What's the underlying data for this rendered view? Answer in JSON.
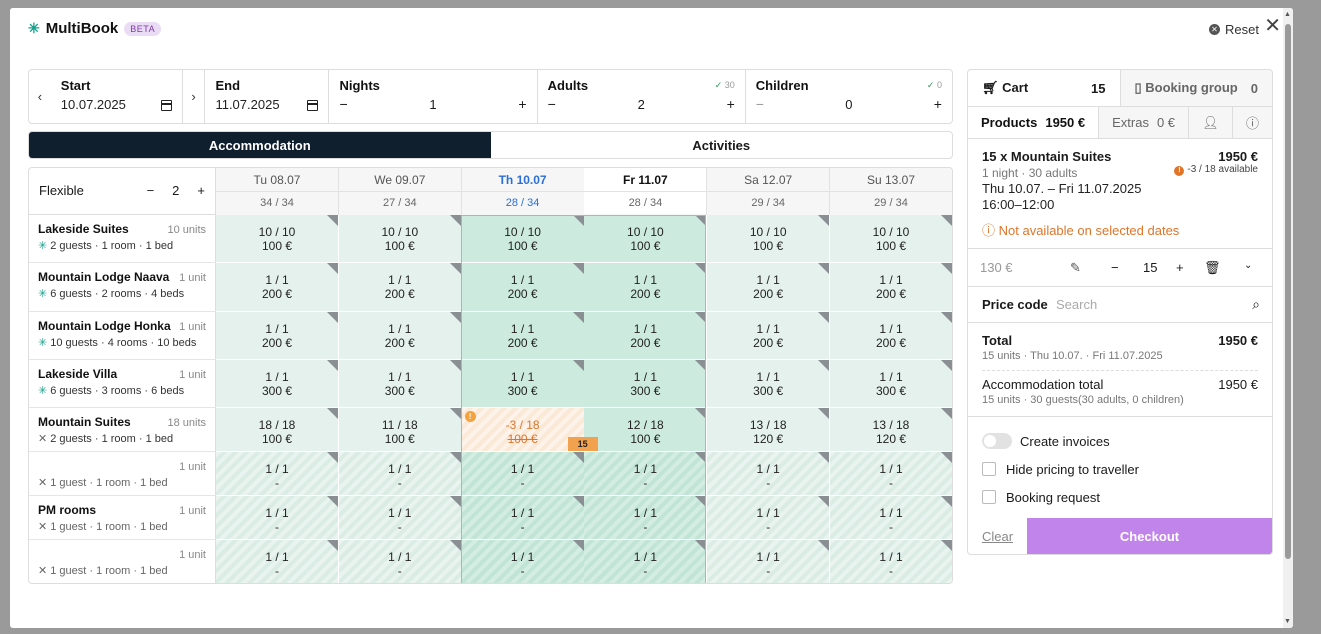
{
  "header": {
    "app_title": "MultiBook",
    "beta": "BETA",
    "reset": "Reset"
  },
  "controls": {
    "start": {
      "label": "Start",
      "value": "10.07.2025"
    },
    "end": {
      "label": "End",
      "value": "11.07.2025"
    },
    "nights": {
      "label": "Nights",
      "value": "1"
    },
    "adults": {
      "label": "Adults",
      "value": "2",
      "check": "30"
    },
    "children": {
      "label": "Children",
      "value": "0",
      "check": "0"
    }
  },
  "tabs": {
    "accommodation": "Accommodation",
    "activities": "Activities"
  },
  "grid": {
    "flexible_label": "Flexible",
    "flexible_value": "2",
    "days": [
      {
        "label": "Tu 08.07",
        "avail": "34 / 34"
      },
      {
        "label": "We 09.07",
        "avail": "27 / 34"
      },
      {
        "label": "Th 10.07",
        "avail": "28 / 34"
      },
      {
        "label": "Fr 11.07",
        "avail": "28 / 34"
      },
      {
        "label": "Sa 12.07",
        "avail": "29 / 34"
      },
      {
        "label": "Su 13.07",
        "avail": "29 / 34"
      }
    ],
    "rows": [
      {
        "name": "Lakeside Suites",
        "units": "10 units",
        "info": "2 guests · 1 room · 1 bed",
        "cells": [
          [
            "10 / 10",
            "100 €"
          ],
          [
            "10 / 10",
            "100 €"
          ],
          [
            "10 / 10",
            "100 €"
          ],
          [
            "10 / 10",
            "100 €"
          ],
          [
            "10 / 10",
            "100 €"
          ],
          [
            "10 / 10",
            "100 €"
          ]
        ]
      },
      {
        "name": "Mountain Lodge Naava",
        "units": "1 unit",
        "info": "6 guests · 2 rooms · 4 beds",
        "cells": [
          [
            "1 / 1",
            "200 €"
          ],
          [
            "1 / 1",
            "200 €"
          ],
          [
            "1 / 1",
            "200 €"
          ],
          [
            "1 / 1",
            "200 €"
          ],
          [
            "1 / 1",
            "200 €"
          ],
          [
            "1 / 1",
            "200 €"
          ]
        ]
      },
      {
        "name": "Mountain Lodge Honka",
        "units": "1 unit",
        "info": "10 guests · 4 rooms · 10 beds",
        "cells": [
          [
            "1 / 1",
            "200 €"
          ],
          [
            "1 / 1",
            "200 €"
          ],
          [
            "1 / 1",
            "200 €"
          ],
          [
            "1 / 1",
            "200 €"
          ],
          [
            "1 / 1",
            "200 €"
          ],
          [
            "1 / 1",
            "200 €"
          ]
        ]
      },
      {
        "name": "Lakeside Villa",
        "units": "1 unit",
        "info": "6 guests · 3 rooms · 6 beds",
        "cells": [
          [
            "1 / 1",
            "300 €"
          ],
          [
            "1 / 1",
            "300 €"
          ],
          [
            "1 / 1",
            "300 €"
          ],
          [
            "1 / 1",
            "300 €"
          ],
          [
            "1 / 1",
            "300 €"
          ],
          [
            "1 / 1",
            "300 €"
          ]
        ]
      },
      {
        "name": "Mountain Suites",
        "units": "18 units",
        "info": "2 guests · 1 room · 1 bed",
        "cells": [
          [
            "18 / 18",
            "100 €"
          ],
          [
            "11 / 18",
            "100 €"
          ],
          [
            "-3 / 18",
            "100 €"
          ],
          [
            "12 / 18",
            "100 €"
          ],
          [
            "13 / 18",
            "120 €"
          ],
          [
            "13 / 18",
            "120 €"
          ]
        ],
        "tag": "15"
      },
      {
        "name": "",
        "units": "1 unit",
        "info": "1 guest · 1 room · 1 bed",
        "cells": [
          [
            "1 / 1",
            "-"
          ],
          [
            "1 / 1",
            "-"
          ],
          [
            "1 / 1",
            "-"
          ],
          [
            "1 / 1",
            "-"
          ],
          [
            "1 / 1",
            "-"
          ],
          [
            "1 / 1",
            "-"
          ]
        ]
      },
      {
        "name": "PM rooms",
        "units": "1 unit",
        "info": "1 guest · 1 room · 1 bed",
        "cells": [
          [
            "1 / 1",
            "-"
          ],
          [
            "1 / 1",
            "-"
          ],
          [
            "1 / 1",
            "-"
          ],
          [
            "1 / 1",
            "-"
          ],
          [
            "1 / 1",
            "-"
          ],
          [
            "1 / 1",
            "-"
          ]
        ]
      },
      {
        "name": "",
        "units": "1 unit",
        "info": "1 guest · 1 room · 1 bed",
        "cells": [
          [
            "1 / 1",
            "-"
          ],
          [
            "1 / 1",
            "-"
          ],
          [
            "1 / 1",
            "-"
          ],
          [
            "1 / 1",
            "-"
          ],
          [
            "1 / 1",
            "-"
          ],
          [
            "1 / 1",
            "-"
          ]
        ]
      }
    ]
  },
  "cart": {
    "cart_label": "Cart",
    "cart_count": "15",
    "group_label": "Booking group",
    "group_count": "0",
    "products_label": "Products",
    "products_value": "1950 €",
    "extras_label": "Extras",
    "extras_value": "0 €",
    "item": {
      "title": "15 x Mountain Suites",
      "price": "1950 €",
      "sub": "1 night  ·  30 adults",
      "avail": "-3 / 18 available",
      "dates": "Thu 10.07. – Fri 11.07.2025",
      "time": "16:00–12:00",
      "warning": "Not available on selected dates"
    },
    "qty": {
      "unit_price": "130 €",
      "value": "15"
    },
    "promo": {
      "label": "Price code",
      "placeholder": "Search"
    },
    "total": {
      "label": "Total",
      "value": "1950 €",
      "sub": "15 units · Thu 10.07. · Fri 11.07.2025"
    },
    "acc_total": {
      "label": "Accommodation total",
      "value": "1950 €",
      "sub": "15 units · 30 guests(30 adults, 0 children)"
    },
    "options": {
      "invoices": "Create invoices",
      "hide_pricing": "Hide pricing to traveller",
      "request": "Booking request"
    },
    "clear": "Clear",
    "checkout": "Checkout"
  }
}
